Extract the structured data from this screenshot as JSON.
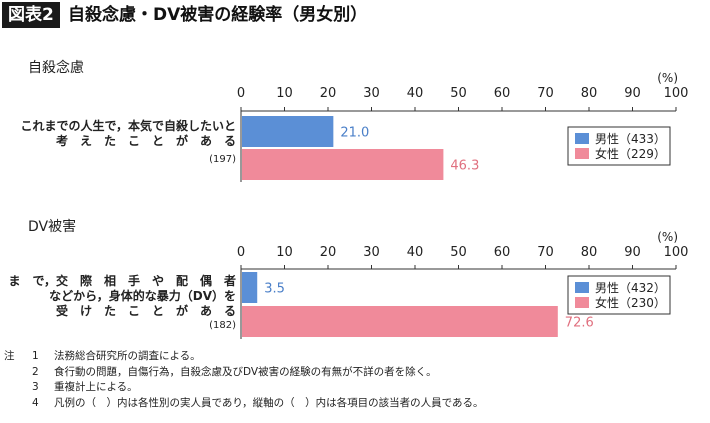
{
  "header": {
    "figure_label": "図表2",
    "title": "自殺念慮・DV被害の経験率（男女別）"
  },
  "chart_data": [
    {
      "type": "bar",
      "orientation": "horizontal",
      "section_title": "自殺念慮",
      "unit": "(%)",
      "xlim": [
        0,
        100
      ],
      "ticks": [
        0,
        10,
        20,
        30,
        40,
        50,
        60,
        70,
        80,
        90,
        100
      ],
      "category_label_lines": [
        "これまでの人生で，本気で自殺したいと",
        "考　え　た　こ　と　が　あ　る"
      ],
      "category_count": "(197)",
      "series": [
        {
          "name": "男性（433）",
          "value": 21.0,
          "label": "21.0",
          "color": "#5b8fd6",
          "label_color": "#4a7fc8"
        },
        {
          "name": "女性（229）",
          "value": 46.3,
          "label": "46.3",
          "color": "#f08a9a",
          "label_color": "#e0707f"
        }
      ],
      "legend_position": "right"
    },
    {
      "type": "bar",
      "orientation": "horizontal",
      "section_title": "DV被害",
      "unit": "(%)",
      "xlim": [
        0,
        100
      ],
      "ticks": [
        0,
        10,
        20,
        30,
        40,
        50,
        60,
        70,
        80,
        90,
        100
      ],
      "category_label_lines": [
        "こ　れ　ま　で，交　際　相　手　や　配　偶　者",
        "などから，身体的な暴力（DV）を",
        "受　け　た　こ　と　が　あ　る"
      ],
      "category_count": "(182)",
      "series": [
        {
          "name": "男性（432）",
          "value": 3.5,
          "label": "3.5",
          "color": "#5b8fd6",
          "label_color": "#4a7fc8"
        },
        {
          "name": "女性（230）",
          "value": 72.6,
          "label": "72.6",
          "color": "#f08a9a",
          "label_color": "#e0707f"
        }
      ],
      "legend_position": "right"
    }
  ],
  "notes": {
    "prefix": "注",
    "items": [
      {
        "num": "1",
        "text": "法務総合研究所の調査による。"
      },
      {
        "num": "2",
        "text": "食行動の問題，自傷行為，自殺念慮及びDV被害の経験の有無が不詳の者を除く。"
      },
      {
        "num": "3",
        "text": "重複計上による。"
      },
      {
        "num": "4",
        "text": "凡例の（　）内は各性別の実人員であり，縦軸の（　）内は各項目の該当者の人員である。"
      }
    ]
  }
}
